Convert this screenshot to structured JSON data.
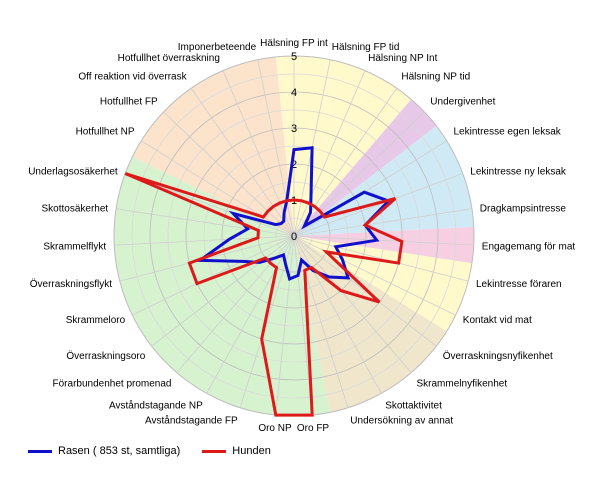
{
  "chart_data": {
    "type": "radar",
    "rlim": [
      0,
      5
    ],
    "r_ticks": [
      "1",
      "2",
      "3",
      "4",
      "5"
    ],
    "categories": [
      "Hälsning FP int",
      "Hälsning FP tid",
      "Hälsning NP Int",
      "Hälsning NP tid",
      "Undergivenhet",
      "Lekintresse egen leksak",
      "Lekintresse ny leksak",
      "Dragkampsintresse",
      "Engagemang för mat",
      "Lekintresse föraren",
      "Kontakt vid mat",
      "Överraskningsnyfikenhet",
      "Skrammelnyfikenhet",
      "Skottaktivitet",
      "Undersökning av annat",
      "Oro FP",
      "Oro NP",
      "Avståndstagande FP",
      "Avståndstagande NP",
      "Förarbundenhet promenad",
      "Överraskningsoro",
      "Skrammeloro",
      "Överraskningsflykt",
      "Skrammelflykt",
      "Skottosäkerhet",
      "Underlagsosäkerhet",
      "Hotfullhet NP",
      "Hotfullhet FP",
      "Off reaktion vid överrask",
      "Hotfullhet överraskning",
      "Imponerbeteende"
    ],
    "series": [
      {
        "name": "Rasen ( 853 st, samtliga)",
        "color": "#1010cc",
        "values": [
          2.4,
          2.5,
          1.2,
          0.8,
          0.4,
          2.3,
          2.8,
          2.0,
          2.3,
          1.2,
          1.5,
          1.9,
          1.5,
          1.1,
          0.7,
          1.1,
          1.2,
          0.8,
          0.6,
          0.8,
          1.2,
          1.6,
          2.7,
          1.8,
          1.3,
          1.8,
          0.6,
          0.5,
          0.5,
          0.7,
          1.0
        ]
      },
      {
        "name": "Hunden",
        "color": "#dd1a1a",
        "values": [
          1.0,
          1.0,
          1.0,
          1.0,
          1.0,
          1.0,
          3.0,
          2.0,
          3.0,
          3.0,
          1.0,
          3.0,
          2.0,
          1.0,
          1.0,
          5.0,
          5.0,
          3.0,
          1.0,
          1.0,
          1.0,
          3.0,
          3.0,
          1.0,
          1.0,
          5.0,
          1.0,
          1.0,
          1.0,
          1.0,
          1.0
        ]
      }
    ],
    "background_sectors": [
      {
        "from_index": 0,
        "to_index": 3,
        "color": "#fff9cc"
      },
      {
        "from_index": 4,
        "to_index": 4,
        "color": "#e8c8e8"
      },
      {
        "from_index": 5,
        "to_index": 7,
        "color": "#cfeaf5"
      },
      {
        "from_index": 8,
        "to_index": 8,
        "color": "#f6d0e2"
      },
      {
        "from_index": 9,
        "to_index": 10,
        "color": "#fff9cc"
      },
      {
        "from_index": 11,
        "to_index": 14,
        "color": "#f0e6cc"
      },
      {
        "from_index": 15,
        "to_index": 25,
        "color": "#d6f2cf"
      },
      {
        "from_index": 26,
        "to_index": 30,
        "color": "#fbe3cc"
      }
    ]
  },
  "legend": {
    "items": [
      {
        "label": "Rasen ( 853 st, samtliga)",
        "color": "#1010cc"
      },
      {
        "label": "Hunden",
        "color": "#dd1a1a"
      }
    ]
  }
}
